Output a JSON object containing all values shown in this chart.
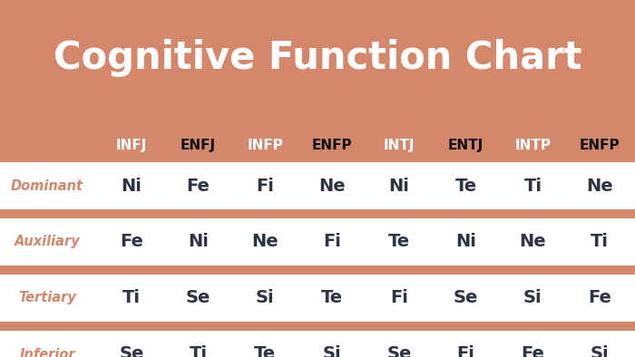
{
  "title": "Cognitive Function Chart",
  "title_color": "#ffffff",
  "title_fontsize": 30,
  "background_color": "#d4876a",
  "table_bg_white": "#ffffff",
  "row_label_color": "#d4876a",
  "cell_color_dark": "#2d3444",
  "header_white_color": "#ffffff",
  "header_dark_color": "#0d0d0d",
  "mbti_types": [
    "INFJ",
    "ENFJ",
    "INFP",
    "ENFP",
    "INTJ",
    "ENTJ",
    "INTP",
    "ENFP"
  ],
  "mbti_bold": [
    false,
    true,
    false,
    true,
    false,
    true,
    false,
    true
  ],
  "row_labels": [
    "Dominant",
    "Auxiliary",
    "Tertiary",
    "Inferior"
  ],
  "table_data": [
    [
      "Ni",
      "Fe",
      "Fi",
      "Ne",
      "Ni",
      "Te",
      "Ti",
      "Ne"
    ],
    [
      "Fe",
      "Ni",
      "Ne",
      "Fi",
      "Te",
      "Ni",
      "Ne",
      "Ti"
    ],
    [
      "Ti",
      "Se",
      "Si",
      "Te",
      "Fi",
      "Se",
      "Si",
      "Fe"
    ],
    [
      "Se",
      "Ti",
      "Te",
      "Si",
      "Se",
      "Fi",
      "Fe",
      "Si"
    ]
  ]
}
